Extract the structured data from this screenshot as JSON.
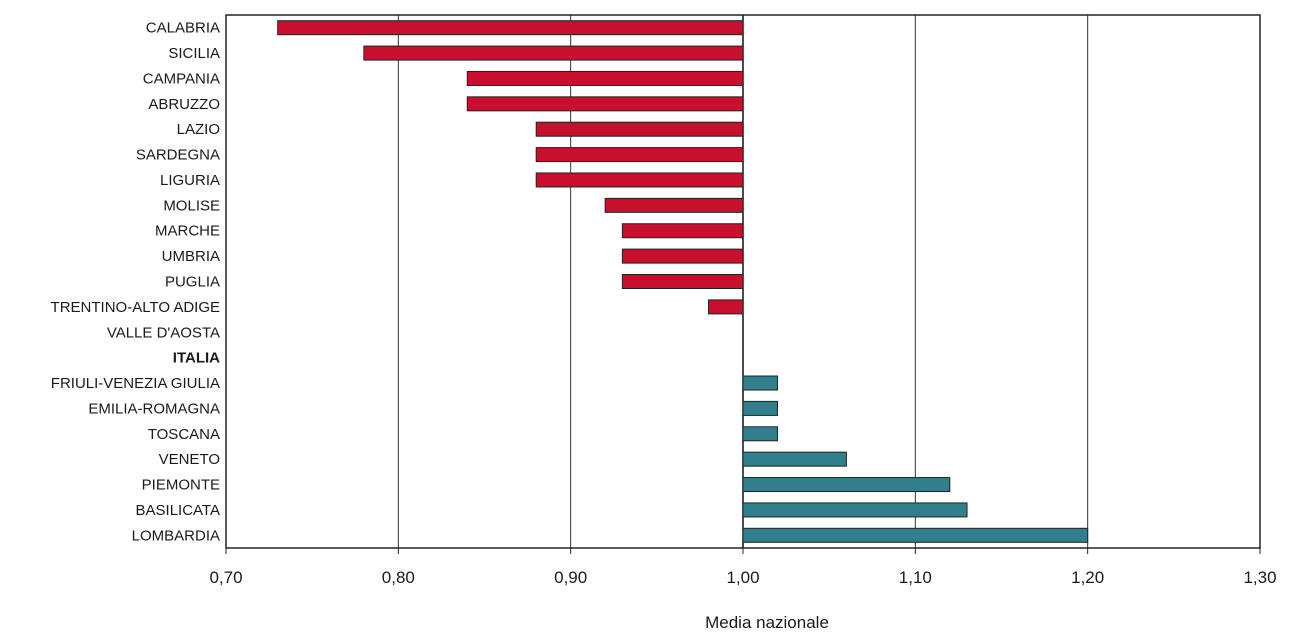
{
  "chart_data": {
    "type": "bar",
    "orientation": "horizontal",
    "baseline": 1.0,
    "xlabel": "Media nazionale",
    "xlim": [
      0.7,
      1.3
    ],
    "x_ticks": [
      "0,70",
      "0,80",
      "0,90",
      "1,00",
      "1,10",
      "1,20",
      "1,30"
    ],
    "x_tick_values": [
      0.7,
      0.8,
      0.9,
      1.0,
      1.1,
      1.2,
      1.3
    ],
    "grid": "vertical",
    "categories": [
      "CALABRIA",
      "SICILIA",
      "CAMPANIA",
      "ABRUZZO",
      "LAZIO",
      "SARDEGNA",
      "LIGURIA",
      "MOLISE",
      "MARCHE",
      "UMBRIA",
      "PUGLIA",
      "TRENTINO-ALTO ADIGE",
      "VALLE D'AOSTA",
      "ITALIA",
      "FRIULI-VENEZIA GIULIA",
      "EMILIA-ROMAGNA",
      "TOSCANA",
      "VENETO",
      "PIEMONTE",
      "BASILICATA",
      "LOMBARDIA"
    ],
    "bold_categories": [
      "ITALIA"
    ],
    "values": [
      0.73,
      0.78,
      0.84,
      0.84,
      0.88,
      0.88,
      0.88,
      0.92,
      0.93,
      0.93,
      0.93,
      0.98,
      1.0,
      1.0,
      1.02,
      1.02,
      1.02,
      1.06,
      1.12,
      1.13,
      1.2
    ],
    "colors": {
      "below": "#c8102e",
      "above": "#2f7f8c",
      "grid": "#333333",
      "border": "#222222"
    }
  }
}
